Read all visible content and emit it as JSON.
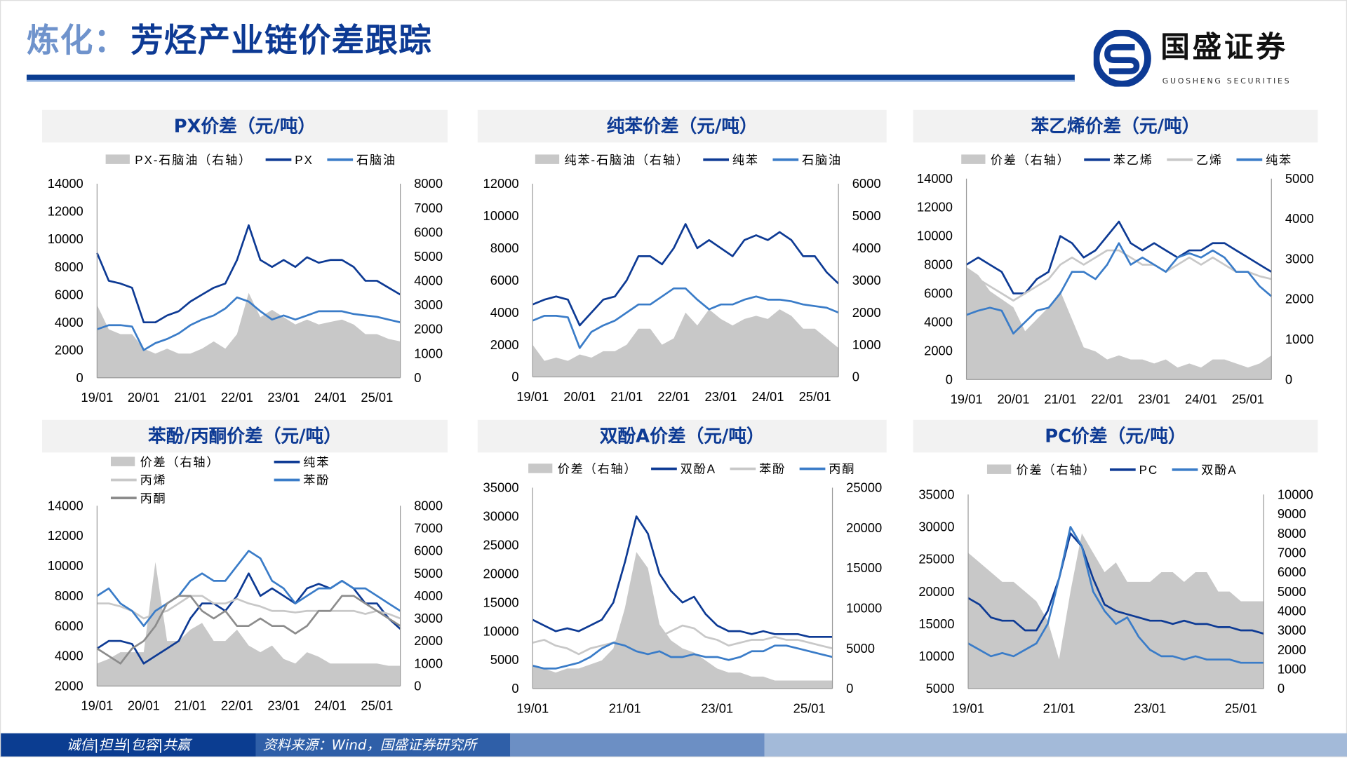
{
  "header": {
    "title_prefix": "炼化：",
    "title_main": "芳烃产业链价差跟踪"
  },
  "logo": {
    "cn": "国盛证券",
    "en": "GUOSHENG SECURITIES"
  },
  "footer": {
    "slogan": "诚信|担当|包容|共赢",
    "source": "资料来源：Wind，国盛证券研究所"
  },
  "colors": {
    "dark_blue": "#0d3a94",
    "mid_blue": "#3a7cc8",
    "light_gray": "#c8c8c8",
    "gray": "#8c8c8c",
    "area": "#c8c8c8",
    "header_bg": "#f2f2f2"
  },
  "chart_data": [
    {
      "type": "line",
      "title": "PX价差（元/吨）",
      "x_start": "2019-01",
      "x_step": "quarter",
      "xticks": [
        "19/01",
        "20/01",
        "21/01",
        "22/01",
        "23/01",
        "24/01",
        "25/01"
      ],
      "ylim": [
        0,
        14000
      ],
      "yticks": [
        0,
        2000,
        4000,
        6000,
        8000,
        10000,
        12000,
        14000
      ],
      "y2lim": [
        0,
        8000
      ],
      "y2ticks": [
        0,
        1000,
        2000,
        3000,
        4000,
        5000,
        6000,
        7000,
        8000
      ],
      "series": [
        {
          "name": "PX-石脑油（右轴）",
          "kind": "area",
          "axis": "right",
          "color": "#c8c8c8",
          "values": [
            3000,
            2000,
            1800,
            1800,
            1200,
            1000,
            1200,
            1000,
            1000,
            1200,
            1500,
            1200,
            1800,
            3500,
            2500,
            2800,
            2500,
            2200,
            2400,
            2200,
            2300,
            2400,
            2200,
            1800,
            1800,
            1600,
            1500
          ]
        },
        {
          "name": "PX",
          "kind": "line",
          "axis": "left",
          "color": "#0d3a94",
          "values": [
            9000,
            7000,
            6800,
            6500,
            4000,
            4000,
            4500,
            4800,
            5500,
            6000,
            6500,
            6800,
            8500,
            11000,
            8500,
            8000,
            8500,
            8000,
            8700,
            8300,
            8500,
            8500,
            8000,
            7000,
            7000,
            6500,
            6000
          ]
        },
        {
          "name": "石脑油",
          "kind": "line",
          "axis": "left",
          "color": "#3a7cc8",
          "values": [
            3500,
            3800,
            3800,
            3700,
            2000,
            2500,
            2800,
            3200,
            3800,
            4200,
            4500,
            5000,
            5800,
            5500,
            4800,
            4200,
            4500,
            4200,
            4500,
            4800,
            4800,
            4800,
            4600,
            4500,
            4400,
            4200,
            4000
          ]
        }
      ]
    },
    {
      "type": "line",
      "title": "纯苯价差（元/吨）",
      "x_start": "2019-01",
      "x_step": "quarter",
      "xticks": [
        "19/01",
        "20/01",
        "21/01",
        "22/01",
        "23/01",
        "24/01",
        "25/01"
      ],
      "ylim": [
        0,
        12000
      ],
      "yticks": [
        0,
        2000,
        4000,
        6000,
        8000,
        10000,
        12000
      ],
      "y2lim": [
        0,
        6000
      ],
      "y2ticks": [
        0,
        1000,
        2000,
        3000,
        4000,
        5000,
        6000
      ],
      "series": [
        {
          "name": "纯苯-石脑油（右轴）",
          "kind": "area",
          "axis": "right",
          "color": "#c8c8c8",
          "values": [
            1000,
            500,
            600,
            500,
            700,
            600,
            800,
            800,
            1000,
            1500,
            1500,
            1000,
            1200,
            2000,
            1600,
            2100,
            1800,
            1600,
            1800,
            1900,
            1800,
            2100,
            1900,
            1500,
            1500,
            1200,
            900
          ]
        },
        {
          "name": "纯苯",
          "kind": "line",
          "axis": "left",
          "color": "#0d3a94",
          "values": [
            4500,
            4800,
            5000,
            4800,
            3200,
            4000,
            4800,
            5000,
            6000,
            7500,
            7500,
            7000,
            8000,
            9500,
            8000,
            8500,
            8000,
            7500,
            8500,
            8800,
            8500,
            9000,
            8500,
            7500,
            7500,
            6500,
            5800
          ]
        },
        {
          "name": "石脑油",
          "kind": "line",
          "axis": "left",
          "color": "#3a7cc8",
          "values": [
            3500,
            3800,
            3800,
            3700,
            1800,
            2800,
            3200,
            3500,
            4000,
            4500,
            4500,
            5000,
            5500,
            5500,
            4800,
            4200,
            4500,
            4500,
            4800,
            5000,
            4800,
            4800,
            4700,
            4500,
            4400,
            4300,
            4000
          ]
        }
      ]
    },
    {
      "type": "line",
      "title": "苯乙烯价差（元/吨）",
      "x_start": "2019-01",
      "x_step": "quarter",
      "xticks": [
        "19/01",
        "20/01",
        "21/01",
        "22/01",
        "23/01",
        "24/01",
        "25/01"
      ],
      "ylim": [
        0,
        14000
      ],
      "yticks": [
        0,
        2000,
        4000,
        6000,
        8000,
        10000,
        12000,
        14000
      ],
      "y2lim": [
        0,
        5000
      ],
      "y2ticks": [
        0,
        1000,
        2000,
        3000,
        4000,
        5000
      ],
      "series": [
        {
          "name": "价差（右轴）",
          "kind": "area",
          "axis": "right",
          "color": "#c8c8c8",
          "values": [
            2800,
            2600,
            2200,
            2000,
            1800,
            1200,
            1500,
            1800,
            2200,
            1500,
            800,
            700,
            500,
            600,
            500,
            500,
            400,
            500,
            300,
            400,
            300,
            500,
            500,
            400,
            300,
            400,
            600
          ]
        },
        {
          "name": "苯乙烯",
          "kind": "line",
          "axis": "left",
          "color": "#0d3a94",
          "values": [
            8000,
            8500,
            8000,
            7500,
            6000,
            6000,
            7000,
            7500,
            10000,
            9500,
            8500,
            9000,
            10000,
            11000,
            9500,
            9000,
            9500,
            9000,
            8500,
            9000,
            9000,
            9500,
            9500,
            9000,
            8500,
            8000,
            7500
          ]
        },
        {
          "name": "乙烯",
          "kind": "line",
          "axis": "left",
          "color": "#c8c8c8",
          "values": [
            7500,
            7000,
            6500,
            6000,
            5500,
            6000,
            6500,
            7000,
            8000,
            8500,
            8000,
            8500,
            9000,
            9000,
            8500,
            8000,
            8000,
            7500,
            8000,
            8500,
            8000,
            8500,
            8000,
            7500,
            7500,
            7200,
            7000
          ]
        },
        {
          "name": "纯苯",
          "kind": "line",
          "axis": "left",
          "color": "#3a7cc8",
          "values": [
            4500,
            4800,
            5000,
            4800,
            3200,
            4000,
            4800,
            5000,
            6000,
            7500,
            7500,
            7000,
            8000,
            9500,
            8000,
            8500,
            8000,
            7500,
            8500,
            8800,
            8500,
            9000,
            8500,
            7500,
            7500,
            6500,
            5800
          ]
        }
      ]
    },
    {
      "type": "line",
      "title": "苯酚/丙酮价差（元/吨）",
      "x_start": "2019-01",
      "x_step": "quarter",
      "xticks": [
        "19/01",
        "20/01",
        "21/01",
        "22/01",
        "23/01",
        "24/01",
        "25/01"
      ],
      "ylim": [
        2000,
        14000
      ],
      "yticks": [
        2000,
        4000,
        6000,
        8000,
        10000,
        12000,
        14000
      ],
      "y2lim": [
        0,
        8000
      ],
      "y2ticks": [
        0,
        1000,
        2000,
        3000,
        4000,
        5000,
        6000,
        7000,
        8000
      ],
      "series": [
        {
          "name": "价差（右轴）",
          "kind": "area",
          "axis": "right",
          "color": "#c8c8c8",
          "values": [
            1000,
            1200,
            1500,
            1500,
            1500,
            5500,
            2000,
            2000,
            2500,
            2800,
            2000,
            2000,
            2500,
            1800,
            1500,
            1800,
            1200,
            1000,
            1500,
            1300,
            1000,
            1000,
            1000,
            1000,
            1000,
            900,
            900
          ]
        },
        {
          "name": "纯苯",
          "kind": "line",
          "axis": "left",
          "color": "#0d3a94",
          "values": [
            4500,
            5000,
            5000,
            4800,
            3500,
            4000,
            4500,
            5000,
            6500,
            7500,
            7500,
            7000,
            8000,
            9500,
            8000,
            8500,
            8000,
            7500,
            8500,
            8800,
            8500,
            9000,
            8500,
            7500,
            7500,
            6500,
            5800
          ]
        },
        {
          "name": "丙烯",
          "kind": "line",
          "axis": "left",
          "color": "#c8c8c8",
          "values": [
            7500,
            7500,
            7300,
            7000,
            6500,
            6800,
            7000,
            7500,
            8000,
            8000,
            7500,
            7500,
            7800,
            7500,
            7300,
            7000,
            7000,
            6900,
            7000,
            7000,
            7000,
            7000,
            7000,
            6800,
            7000,
            6800,
            6500
          ]
        },
        {
          "name": "苯酚",
          "kind": "line",
          "axis": "left",
          "color": "#3a7cc8",
          "values": [
            8000,
            8500,
            7500,
            7000,
            6000,
            7000,
            7500,
            8000,
            9000,
            9500,
            9000,
            9000,
            10000,
            11000,
            10500,
            9000,
            8500,
            7500,
            8000,
            8500,
            8500,
            9000,
            8500,
            8500,
            8000,
            7500,
            7000
          ]
        },
        {
          "name": "丙酮",
          "kind": "line",
          "axis": "left",
          "color": "#8c8c8c",
          "values": [
            4500,
            4000,
            3500,
            4500,
            5000,
            6000,
            7500,
            8000,
            8000,
            7000,
            6500,
            7000,
            6000,
            6000,
            6500,
            6000,
            6000,
            5500,
            6000,
            7000,
            7000,
            8000,
            8000,
            7500,
            7000,
            6500,
            6000
          ]
        }
      ]
    },
    {
      "type": "line",
      "title": "双酚A价差（元/吨）",
      "x_start": "2019-01",
      "x_step": "quarter",
      "xticks": [
        "19/01",
        "21/01",
        "23/01",
        "25/01"
      ],
      "ylim": [
        0,
        35000
      ],
      "yticks": [
        0,
        5000,
        10000,
        15000,
        20000,
        25000,
        30000,
        35000
      ],
      "y2lim": [
        0,
        25000
      ],
      "y2ticks": [
        0,
        5000,
        10000,
        15000,
        20000,
        25000
      ],
      "series": [
        {
          "name": "价差（右轴）",
          "kind": "area",
          "axis": "right",
          "color": "#c8c8c8",
          "values": [
            3000,
            2500,
            2000,
            2500,
            2500,
            3000,
            3500,
            5000,
            10000,
            17000,
            15000,
            8000,
            6000,
            5000,
            4500,
            3500,
            2500,
            2000,
            2000,
            1500,
            1500,
            1000,
            1000,
            1000,
            1000,
            1000,
            1000
          ]
        },
        {
          "name": "双酚A",
          "kind": "line",
          "axis": "left",
          "color": "#0d3a94",
          "values": [
            12000,
            11000,
            10000,
            10500,
            10000,
            11000,
            12000,
            15000,
            22000,
            30000,
            27000,
            20000,
            17000,
            15000,
            16000,
            13000,
            11000,
            10000,
            10000,
            9500,
            10000,
            9500,
            9500,
            9500,
            9000,
            9000,
            9000
          ]
        },
        {
          "name": "苯酚",
          "kind": "line",
          "axis": "left",
          "color": "#c8c8c8",
          "values": [
            8000,
            8500,
            7500,
            7000,
            6000,
            7000,
            7500,
            8000,
            9000,
            9500,
            9000,
            9000,
            10000,
            11000,
            10500,
            9000,
            8500,
            7500,
            8000,
            8500,
            8500,
            9000,
            8500,
            8500,
            8000,
            7500,
            7000
          ]
        },
        {
          "name": "丙酮",
          "kind": "line",
          "axis": "left",
          "color": "#3a7cc8",
          "values": [
            4000,
            3500,
            3500,
            4000,
            4500,
            5500,
            7000,
            8000,
            7500,
            6500,
            6000,
            6500,
            5500,
            5500,
            6000,
            5500,
            5500,
            5000,
            5500,
            6500,
            6500,
            7500,
            7500,
            7000,
            6500,
            6000,
            5500
          ]
        }
      ]
    },
    {
      "type": "line",
      "title": "PC价差（元/吨）",
      "x_start": "2019-01",
      "x_step": "quarter",
      "xticks": [
        "19/01",
        "21/01",
        "23/01",
        "25/01"
      ],
      "ylim": [
        5000,
        35000
      ],
      "yticks": [
        5000,
        10000,
        15000,
        20000,
        25000,
        30000,
        35000
      ],
      "y2lim": [
        0,
        10000
      ],
      "y2ticks": [
        0,
        1000,
        2000,
        3000,
        4000,
        5000,
        6000,
        7000,
        8000,
        9000,
        10000
      ],
      "series": [
        {
          "name": "价差（右轴）",
          "kind": "area",
          "axis": "right",
          "color": "#c8c8c8",
          "values": [
            7000,
            6500,
            6000,
            5500,
            5500,
            5000,
            4500,
            3500,
            1500,
            5000,
            8000,
            7000,
            6000,
            6500,
            5500,
            5500,
            5500,
            6000,
            6000,
            5500,
            6000,
            6000,
            5000,
            5000,
            4500,
            4500,
            4500
          ]
        },
        {
          "name": "PC",
          "kind": "line",
          "axis": "left",
          "color": "#0d3a94",
          "values": [
            19000,
            18000,
            16000,
            15500,
            15500,
            14000,
            14000,
            17000,
            22000,
            29000,
            27000,
            22000,
            18000,
            17000,
            16500,
            16000,
            15500,
            15500,
            15000,
            15500,
            15000,
            15000,
            14500,
            14500,
            14000,
            14000,
            13500
          ]
        },
        {
          "name": "双酚A",
          "kind": "line",
          "axis": "left",
          "color": "#3a7cc8",
          "values": [
            12000,
            11000,
            10000,
            10500,
            10000,
            11000,
            12000,
            15000,
            22000,
            30000,
            27000,
            20000,
            17000,
            15000,
            16000,
            13000,
            11000,
            10000,
            10000,
            9500,
            10000,
            9500,
            9500,
            9500,
            9000,
            9000,
            9000
          ]
        }
      ]
    }
  ]
}
